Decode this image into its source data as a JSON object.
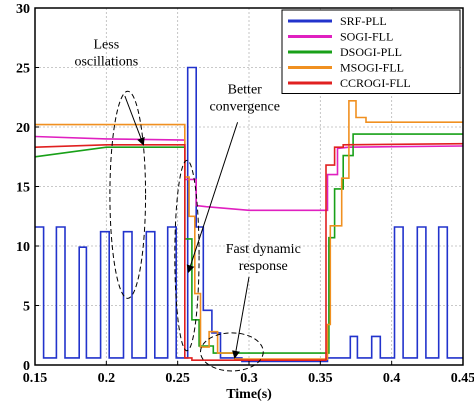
{
  "chart_data": {
    "type": "line",
    "title": "",
    "xlabel": "Time(s)",
    "ylabel": "",
    "xlim": [
      0.15,
      0.45
    ],
    "ylim": [
      0,
      30
    ],
    "xticks": [
      "0.15",
      "0.2",
      "0.25",
      "0.3",
      "0.35",
      "0.4",
      "0.45"
    ],
    "yticks": [
      "0",
      "5",
      "10",
      "15",
      "20",
      "25",
      "30"
    ],
    "grid": true,
    "legend_position": "top-right",
    "series": [
      {
        "name": "SRF-PLL",
        "color": "#2233cc",
        "points": [
          [
            0.15,
            11.6
          ],
          [
            0.156,
            11.6
          ],
          [
            0.156,
            0.6
          ],
          [
            0.165,
            0.6
          ],
          [
            0.165,
            11.6
          ],
          [
            0.171,
            11.6
          ],
          [
            0.171,
            0.6
          ],
          [
            0.181,
            0.6
          ],
          [
            0.181,
            9.9
          ],
          [
            0.186,
            9.9
          ],
          [
            0.186,
            0.6
          ],
          [
            0.196,
            0.6
          ],
          [
            0.196,
            11.2
          ],
          [
            0.202,
            11.2
          ],
          [
            0.202,
            0.6
          ],
          [
            0.212,
            0.6
          ],
          [
            0.212,
            11.2
          ],
          [
            0.218,
            11.2
          ],
          [
            0.218,
            0.6
          ],
          [
            0.228,
            0.6
          ],
          [
            0.228,
            11.2
          ],
          [
            0.234,
            11.2
          ],
          [
            0.234,
            0.6
          ],
          [
            0.243,
            0.6
          ],
          [
            0.243,
            11.6
          ],
          [
            0.249,
            11.6
          ],
          [
            0.249,
            0.6
          ],
          [
            0.257,
            0.6
          ],
          [
            0.257,
            25
          ],
          [
            0.263,
            25
          ],
          [
            0.263,
            11.6
          ],
          [
            0.268,
            11.6
          ],
          [
            0.268,
            4.6
          ],
          [
            0.274,
            4.6
          ],
          [
            0.274,
            2.7
          ],
          [
            0.28,
            2.7
          ],
          [
            0.28,
            0.6
          ],
          [
            0.295,
            0.6
          ],
          [
            0.295,
            0.3
          ],
          [
            0.355,
            0.3
          ],
          [
            0.355,
            0.6
          ],
          [
            0.365,
            0.6
          ],
          [
            0.365,
            0.6
          ],
          [
            0.371,
            0.6
          ],
          [
            0.371,
            2.4
          ],
          [
            0.376,
            2.4
          ],
          [
            0.376,
            0.6
          ],
          [
            0.386,
            0.6
          ],
          [
            0.386,
            2.4
          ],
          [
            0.392,
            2.4
          ],
          [
            0.392,
            0.6
          ],
          [
            0.402,
            0.6
          ],
          [
            0.402,
            11.6
          ],
          [
            0.408,
            11.6
          ],
          [
            0.408,
            0.6
          ],
          [
            0.418,
            0.6
          ],
          [
            0.418,
            11.6
          ],
          [
            0.424,
            11.6
          ],
          [
            0.424,
            0.6
          ],
          [
            0.433,
            0.6
          ],
          [
            0.433,
            11.6
          ],
          [
            0.439,
            11.6
          ],
          [
            0.439,
            0.6
          ],
          [
            0.45,
            0.6
          ]
        ]
      },
      {
        "name": "SOGI-FLL",
        "color": "#e020c0",
        "points": [
          [
            0.15,
            19.2
          ],
          [
            0.2,
            19.0
          ],
          [
            0.255,
            18.9
          ],
          [
            0.255,
            15.6
          ],
          [
            0.263,
            15.6
          ],
          [
            0.263,
            13.4
          ],
          [
            0.27,
            13.3
          ],
          [
            0.3,
            13.0
          ],
          [
            0.355,
            13.0
          ],
          [
            0.355,
            16.0
          ],
          [
            0.362,
            16.0
          ],
          [
            0.362,
            18.2
          ],
          [
            0.37,
            18.3
          ],
          [
            0.45,
            18.4
          ]
        ]
      },
      {
        "name": "DSOGI-PLL",
        "color": "#18a018",
        "points": [
          [
            0.15,
            17.5
          ],
          [
            0.2,
            18.3
          ],
          [
            0.255,
            18.3
          ],
          [
            0.255,
            10.6
          ],
          [
            0.26,
            10.6
          ],
          [
            0.26,
            3.8
          ],
          [
            0.265,
            3.8
          ],
          [
            0.265,
            1.6
          ],
          [
            0.275,
            1.6
          ],
          [
            0.275,
            1.0
          ],
          [
            0.3,
            1.0
          ],
          [
            0.356,
            1.0
          ],
          [
            0.356,
            10.7
          ],
          [
            0.36,
            10.7
          ],
          [
            0.36,
            14.8
          ],
          [
            0.366,
            14.8
          ],
          [
            0.366,
            17.6
          ],
          [
            0.373,
            17.6
          ],
          [
            0.373,
            19.4
          ],
          [
            0.45,
            19.4
          ]
        ]
      },
      {
        "name": "MSOGI-FLL",
        "color": "#f09020",
        "points": [
          [
            0.15,
            20.2
          ],
          [
            0.2,
            20.2
          ],
          [
            0.255,
            20.2
          ],
          [
            0.255,
            15.8
          ],
          [
            0.258,
            15.8
          ],
          [
            0.258,
            12.5
          ],
          [
            0.262,
            12.5
          ],
          [
            0.262,
            6.0
          ],
          [
            0.266,
            6.0
          ],
          [
            0.266,
            1.5
          ],
          [
            0.272,
            1.5
          ],
          [
            0.272,
            2.8
          ],
          [
            0.278,
            2.8
          ],
          [
            0.278,
            1.0
          ],
          [
            0.29,
            1.0
          ],
          [
            0.29,
            0.5
          ],
          [
            0.3,
            0.5
          ],
          [
            0.355,
            0.5
          ],
          [
            0.355,
            3.4
          ],
          [
            0.357,
            3.4
          ],
          [
            0.357,
            11.7
          ],
          [
            0.365,
            11.7
          ],
          [
            0.365,
            15.7
          ],
          [
            0.37,
            15.7
          ],
          [
            0.37,
            22.2
          ],
          [
            0.375,
            22.2
          ],
          [
            0.375,
            20.8
          ],
          [
            0.382,
            20.8
          ],
          [
            0.382,
            20.4
          ],
          [
            0.45,
            20.4
          ]
        ]
      },
      {
        "name": "CCROGI-FLL",
        "color": "#e02020",
        "points": [
          [
            0.15,
            18.3
          ],
          [
            0.2,
            18.5
          ],
          [
            0.255,
            18.5
          ],
          [
            0.255,
            0.6
          ],
          [
            0.26,
            0.6
          ],
          [
            0.26,
            0.4
          ],
          [
            0.3,
            0.4
          ],
          [
            0.354,
            0.4
          ],
          [
            0.354,
            16.8
          ],
          [
            0.36,
            16.8
          ],
          [
            0.36,
            18.3
          ],
          [
            0.366,
            18.3
          ],
          [
            0.366,
            18.5
          ],
          [
            0.45,
            18.6
          ]
        ]
      }
    ],
    "annotations": [
      {
        "lines": [
          "Less",
          "oscillations"
        ],
        "x": 0.2,
        "y": 26.6
      },
      {
        "lines": [
          "Better",
          "convergence"
        ],
        "x": 0.297,
        "y": 22.8
      },
      {
        "lines": [
          "Fast dynamic",
          "response"
        ],
        "x": 0.31,
        "y": 9.4
      }
    ]
  }
}
